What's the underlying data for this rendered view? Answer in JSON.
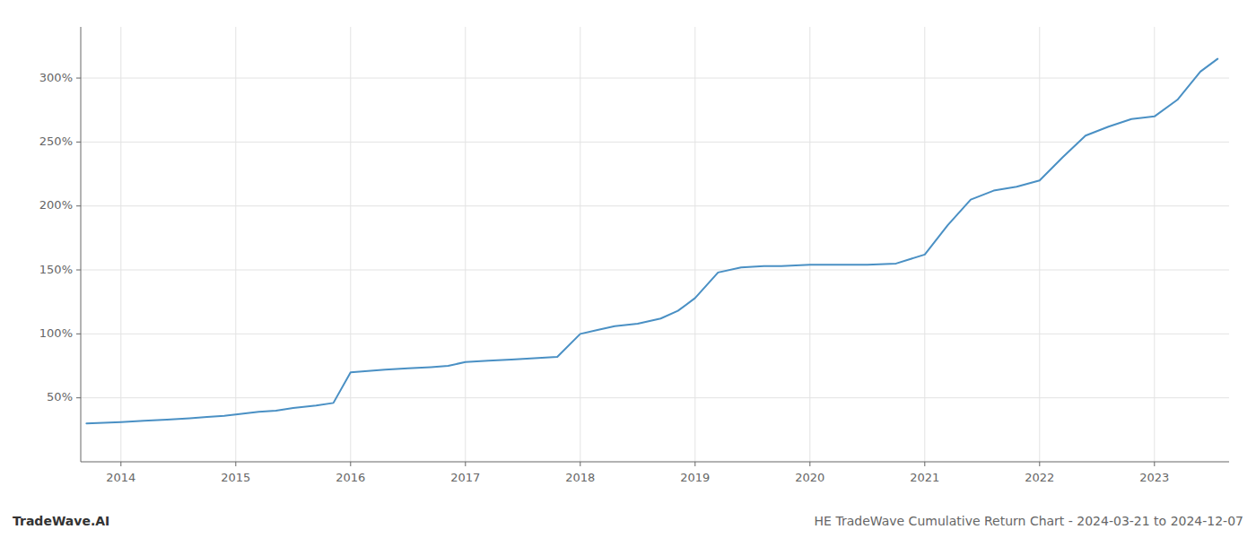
{
  "chart_data": {
    "type": "line",
    "title": "HE TradeWave Cumulative Return Chart - 2024-03-21 to 2024-12-07",
    "annotations": [
      "TradeWave.AI"
    ],
    "color": "#4a90c4",
    "grid": true,
    "x": [
      2013.7,
      2013.85,
      2014.0,
      2014.2,
      2014.4,
      2014.6,
      2014.75,
      2014.9,
      2015.0,
      2015.1,
      2015.2,
      2015.35,
      2015.5,
      2015.7,
      2015.85,
      2016.0,
      2016.15,
      2016.3,
      2016.5,
      2016.7,
      2016.85,
      2017.0,
      2017.2,
      2017.4,
      2017.6,
      2017.8,
      2018.0,
      2018.15,
      2018.3,
      2018.5,
      2018.7,
      2018.85,
      2019.0,
      2019.1,
      2019.2,
      2019.4,
      2019.6,
      2019.75,
      2020.0,
      2020.2,
      2020.5,
      2020.75,
      2021.0,
      2021.2,
      2021.4,
      2021.6,
      2021.8,
      2022.0,
      2022.2,
      2022.4,
      2022.6,
      2022.8,
      2023.0,
      2023.2,
      2023.4,
      2023.55
    ],
    "values": [
      30,
      30.5,
      31,
      32,
      33,
      34,
      35,
      36,
      37,
      38,
      39,
      40,
      42,
      44,
      46,
      70,
      71,
      72,
      73,
      74,
      75,
      78,
      79,
      80,
      81,
      82,
      100,
      103,
      106,
      108,
      112,
      118,
      128,
      138,
      148,
      152,
      153,
      153,
      154,
      154,
      154,
      155,
      162,
      185,
      205,
      212,
      215,
      220,
      238,
      255,
      262,
      268,
      270,
      283,
      305,
      315
    ],
    "xlim": [
      2013.65,
      2023.65
    ],
    "xticks": [
      2014,
      2015,
      2016,
      2017,
      2018,
      2019,
      2020,
      2021,
      2022,
      2023
    ],
    "ylim": [
      0,
      340
    ],
    "yticks": [
      {
        "value": 50,
        "label": "50%"
      },
      {
        "value": 100,
        "label": "100%"
      },
      {
        "value": 150,
        "label": "150%"
      },
      {
        "value": 200,
        "label": "200%"
      },
      {
        "value": 250,
        "label": "250%"
      },
      {
        "value": 300,
        "label": "300%"
      }
    ]
  }
}
